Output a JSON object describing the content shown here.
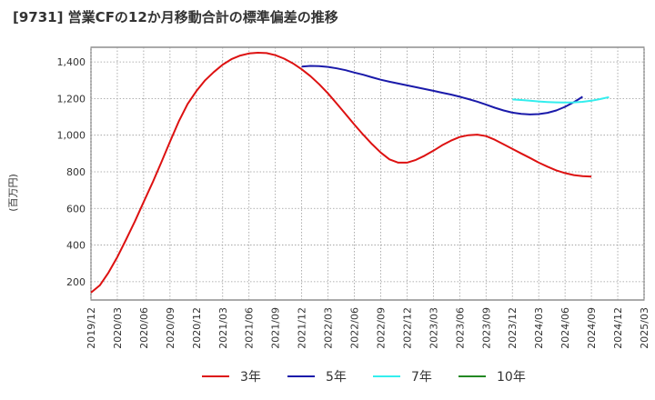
{
  "chart_data": {
    "type": "line",
    "title": "[9731]  営業CFの12か月移動合計の標準偏差の推移",
    "xlabel": "",
    "ylabel": "(百万円)",
    "ylim": [
      100,
      1480
    ],
    "yticks": [
      200,
      400,
      600,
      800,
      1000,
      1200,
      1400
    ],
    "xticks": [
      "2019/12",
      "2020/03",
      "2020/06",
      "2020/09",
      "2020/12",
      "2021/03",
      "2021/06",
      "2021/09",
      "2021/12",
      "2022/03",
      "2022/06",
      "2022/09",
      "2022/12",
      "2023/03",
      "2023/06",
      "2023/09",
      "2023/12",
      "2024/03",
      "2024/06",
      "2024/09",
      "2024/12",
      "2025/03"
    ],
    "x_unit": "month_index_from_2019_12",
    "grid": true,
    "legend_position": "bottom",
    "series": [
      {
        "name": "3年",
        "color": "#dd1111",
        "points": [
          [
            0,
            140
          ],
          [
            1,
            180
          ],
          [
            2,
            250
          ],
          [
            3,
            335
          ],
          [
            4,
            430
          ],
          [
            5,
            530
          ],
          [
            6,
            635
          ],
          [
            7,
            740
          ],
          [
            8,
            850
          ],
          [
            9,
            965
          ],
          [
            10,
            1075
          ],
          [
            11,
            1170
          ],
          [
            12,
            1240
          ],
          [
            13,
            1300
          ],
          [
            14,
            1345
          ],
          [
            15,
            1385
          ],
          [
            16,
            1415
          ],
          [
            17,
            1435
          ],
          [
            18,
            1446
          ],
          [
            19,
            1450
          ],
          [
            20,
            1448
          ],
          [
            21,
            1437
          ],
          [
            22,
            1418
          ],
          [
            23,
            1392
          ],
          [
            24,
            1360
          ],
          [
            25,
            1322
          ],
          [
            26,
            1278
          ],
          [
            27,
            1228
          ],
          [
            28,
            1172
          ],
          [
            29,
            1115
          ],
          [
            30,
            1058
          ],
          [
            31,
            1003
          ],
          [
            32,
            952
          ],
          [
            33,
            905
          ],
          [
            34,
            868
          ],
          [
            35,
            850
          ],
          [
            36,
            850
          ],
          [
            37,
            865
          ],
          [
            38,
            888
          ],
          [
            39,
            915
          ],
          [
            40,
            945
          ],
          [
            41,
            970
          ],
          [
            42,
            990
          ],
          [
            43,
            1000
          ],
          [
            44,
            1003
          ],
          [
            45,
            995
          ],
          [
            46,
            975
          ],
          [
            47,
            950
          ],
          [
            48,
            925
          ],
          [
            49,
            900
          ],
          [
            50,
            876
          ],
          [
            51,
            850
          ],
          [
            52,
            828
          ],
          [
            53,
            808
          ],
          [
            54,
            793
          ],
          [
            55,
            782
          ],
          [
            56,
            776
          ],
          [
            57,
            774
          ]
        ]
      },
      {
        "name": "5年",
        "color": "#1a1aaa",
        "points": [
          [
            24,
            1375
          ],
          [
            25,
            1378
          ],
          [
            26,
            1377
          ],
          [
            27,
            1373
          ],
          [
            28,
            1365
          ],
          [
            29,
            1355
          ],
          [
            30,
            1342
          ],
          [
            31,
            1330
          ],
          [
            32,
            1316
          ],
          [
            33,
            1303
          ],
          [
            34,
            1292
          ],
          [
            35,
            1282
          ],
          [
            36,
            1272
          ],
          [
            37,
            1262
          ],
          [
            38,
            1252
          ],
          [
            39,
            1242
          ],
          [
            40,
            1232
          ],
          [
            41,
            1222
          ],
          [
            42,
            1210
          ],
          [
            43,
            1197
          ],
          [
            44,
            1183
          ],
          [
            45,
            1167
          ],
          [
            46,
            1150
          ],
          [
            47,
            1135
          ],
          [
            48,
            1123
          ],
          [
            49,
            1116
          ],
          [
            50,
            1113
          ],
          [
            51,
            1115
          ],
          [
            52,
            1122
          ],
          [
            53,
            1135
          ],
          [
            54,
            1155
          ],
          [
            55,
            1180
          ],
          [
            56,
            1210
          ]
        ]
      },
      {
        "name": "7年",
        "color": "#33eeee",
        "points": [
          [
            48,
            1195
          ],
          [
            49,
            1192
          ],
          [
            50,
            1188
          ],
          [
            51,
            1184
          ],
          [
            52,
            1181
          ],
          [
            53,
            1179
          ],
          [
            54,
            1178
          ],
          [
            55,
            1179
          ],
          [
            56,
            1182
          ],
          [
            57,
            1188
          ],
          [
            58,
            1197
          ],
          [
            59,
            1208
          ]
        ]
      },
      {
        "name": "10年",
        "color": "#228822",
        "points": []
      }
    ]
  }
}
